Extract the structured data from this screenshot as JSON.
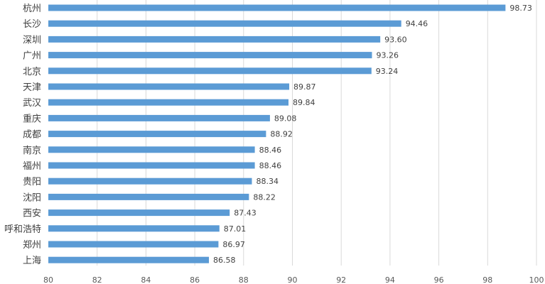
{
  "chart_data": {
    "type": "bar",
    "orientation": "horizontal",
    "categories": [
      "杭州",
      "长沙",
      "深圳",
      "广州",
      "北京",
      "天津",
      "武汉",
      "重庆",
      "成都",
      "南京",
      "福州",
      "贵阳",
      "沈阳",
      "西安",
      "呼和浩特",
      "郑州",
      "上海"
    ],
    "values": [
      98.73,
      94.46,
      93.6,
      93.26,
      93.24,
      89.87,
      89.84,
      89.08,
      88.92,
      88.46,
      88.46,
      88.34,
      88.22,
      87.43,
      87.01,
      86.97,
      86.58
    ],
    "value_labels": [
      "98.73",
      "94.46",
      "93.60",
      "93.26",
      "93.24",
      "89.87",
      "89.84",
      "89.08",
      "88.92",
      "88.46",
      "88.46",
      "88.34",
      "88.22",
      "87.43",
      "87.01",
      "86.97",
      "86.58"
    ],
    "xlim": [
      80,
      100
    ],
    "x_ticks": [
      "80",
      "82",
      "84",
      "86",
      "88",
      "90",
      "92",
      "94",
      "96",
      "98",
      "100"
    ],
    "grid": "vertical",
    "bar_color": "#5b9bd5",
    "title": "",
    "xlabel": "",
    "ylabel": ""
  }
}
